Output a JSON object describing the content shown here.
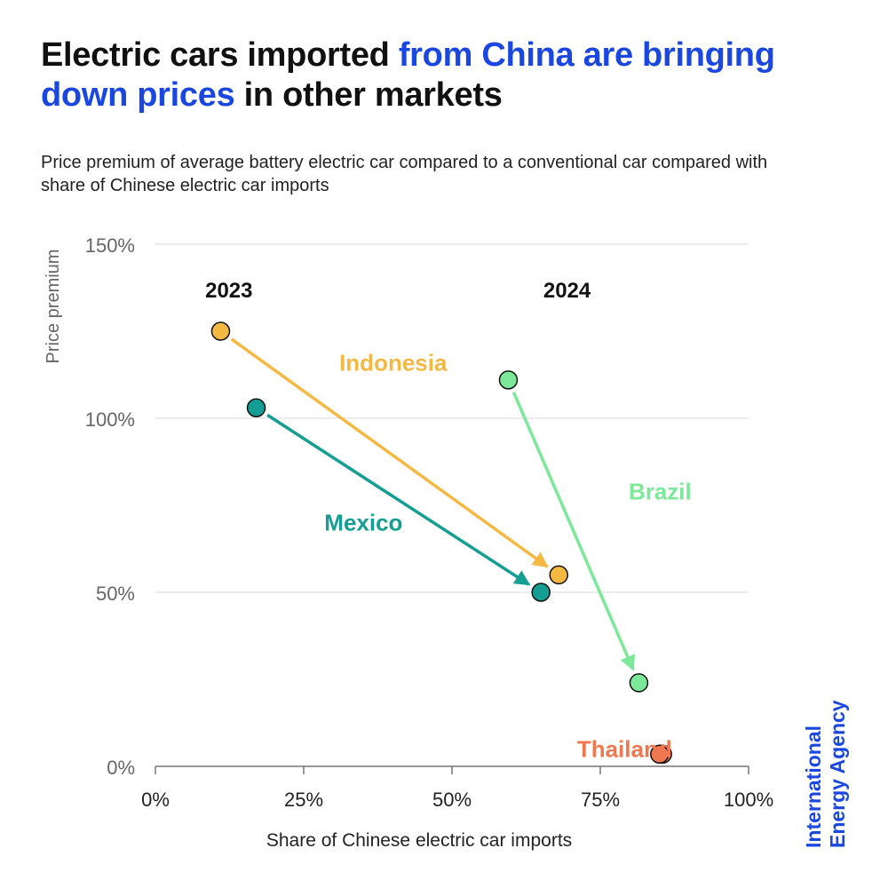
{
  "title": {
    "part1": "Electric cars imported ",
    "highlight": "from China are bringing down prices",
    "part2": " in other markets"
  },
  "subtitle": "Price premium of average battery electric car compared to a conventional car compared with share of Chinese electric car imports",
  "brand": {
    "line1": "International",
    "line2": "Energy Agency"
  },
  "colors": {
    "highlight": "#1a47e0",
    "indonesia": "#f5b843",
    "mexico": "#159e93",
    "brazil": "#7be89a",
    "thailand": "#f07850",
    "grid": "#d9d9d9",
    "text_muted": "#666666"
  },
  "chart_data": {
    "type": "scatter",
    "xlabel": "Share of Chinese electric car imports",
    "ylabel": "Price premium",
    "xlim": [
      0,
      100
    ],
    "ylim": [
      0,
      150
    ],
    "x_ticks": [
      0,
      25,
      50,
      75,
      100
    ],
    "y_ticks": [
      0,
      50,
      100,
      150
    ],
    "x_tick_labels": [
      "0%",
      "25%",
      "50%",
      "75%",
      "100%"
    ],
    "y_tick_labels": [
      "0%",
      "50%",
      "100%",
      "150%"
    ],
    "period_labels": [
      {
        "text": "2023",
        "x": 10,
        "y": 137
      },
      {
        "text": "2024",
        "x": 67,
        "y": 137
      }
    ],
    "series": [
      {
        "name": "Indonesia",
        "color_key": "indonesia",
        "from": {
          "x": 11,
          "y": 125
        },
        "to": {
          "x": 68,
          "y": 55
        },
        "label_at": {
          "x": 32,
          "y": 116
        }
      },
      {
        "name": "Mexico",
        "color_key": "mexico",
        "from": {
          "x": 17,
          "y": 103
        },
        "to": {
          "x": 65,
          "y": 50
        },
        "label_at": {
          "x": 27,
          "y": 70
        }
      },
      {
        "name": "Brazil",
        "color_key": "brazil",
        "from": {
          "x": 59.5,
          "y": 111
        },
        "to": {
          "x": 81.5,
          "y": 24
        },
        "label_at": {
          "x": 77,
          "y": 79
        }
      },
      {
        "name": "Thailand",
        "color_key": "thailand",
        "from": {
          "x": 85.5,
          "y": 3.5
        },
        "to": {
          "x": 85,
          "y": 3.5
        },
        "label_at": {
          "x": 71,
          "y": 5
        }
      }
    ]
  }
}
